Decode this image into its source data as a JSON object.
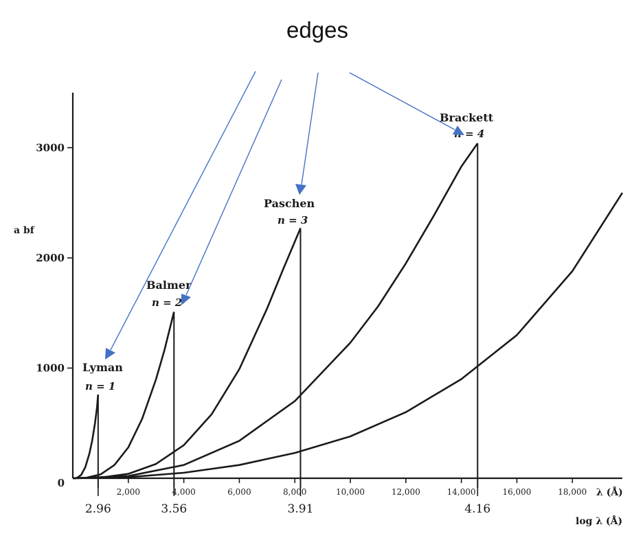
{
  "annotation": {
    "title": "edges",
    "arrow_color": "#4472c4"
  },
  "chart_data": {
    "type": "line",
    "title": "",
    "xlabel": "λ (Å)",
    "ylabel": "a bf",
    "log_axis_label": "log λ (Å)",
    "xlim": [
      0,
      19800
    ],
    "ylim": [
      0,
      3500
    ],
    "x_ticks": [
      2000,
      4000,
      6000,
      8000,
      10000,
      12000,
      14000,
      16000,
      18000
    ],
    "x_tick_labels": [
      "2,000",
      "4,000",
      "6,000",
      "8,000",
      "10,000",
      "12,000",
      "14,000",
      "16,000",
      "18,000"
    ],
    "y_ticks": [
      0,
      1000,
      2000,
      3000
    ],
    "y_tick_labels": [
      "0",
      "1000",
      "2000",
      "3000"
    ],
    "log_ticks": [
      {
        "x": 912,
        "label": "2.96"
      },
      {
        "x": 3646,
        "label": "3.56"
      },
      {
        "x": 8204,
        "label": "3.91"
      },
      {
        "x": 14585,
        "label": "4.16"
      }
    ],
    "series": [
      {
        "label": "Lyman",
        "sublabel": "n = 1",
        "n": 1,
        "edge_lambda": 912,
        "edge_value": 760,
        "x": [
          0,
          150,
          300,
          450,
          600,
          700,
          800,
          870,
          912
        ],
        "y": [
          0,
          4,
          30,
          100,
          225,
          345,
          500,
          640,
          760
        ]
      },
      {
        "label": "Balmer",
        "sublabel": "n = 2",
        "n": 2,
        "edge_lambda": 3646,
        "edge_value": 1510,
        "x": [
          0,
          500,
          1000,
          1500,
          2000,
          2500,
          3000,
          3300,
          3646
        ],
        "y": [
          0,
          5,
          35,
          120,
          280,
          540,
          900,
          1160,
          1510
        ]
      },
      {
        "label": "Paschen",
        "sublabel": "n = 3",
        "n": 3,
        "edge_lambda": 8204,
        "edge_value": 2270,
        "x": [
          0,
          1000,
          2000,
          3000,
          4000,
          5000,
          6000,
          7000,
          7600,
          8204
        ],
        "y": [
          0,
          6,
          40,
          130,
          300,
          580,
          990,
          1540,
          1910,
          2270
        ]
      },
      {
        "label": "Brackett",
        "sublabel": "n = 4",
        "n": 4,
        "edge_lambda": 14585,
        "edge_value": 3040,
        "x": [
          0,
          2000,
          4000,
          6000,
          8000,
          10000,
          11000,
          12000,
          13000,
          14000,
          14585
        ],
        "y": [
          0,
          20,
          120,
          340,
          700,
          1230,
          1560,
          1950,
          2380,
          2830,
          3040
        ]
      },
      {
        "label": "",
        "sublabel": "",
        "n": 5,
        "edge_lambda": null,
        "edge_value": null,
        "x": [
          0,
          2000,
          4000,
          6000,
          8000,
          10000,
          12000,
          14000,
          16000,
          18000,
          19800
        ],
        "y": [
          0,
          10,
          50,
          120,
          230,
          380,
          600,
          900,
          1300,
          1880,
          2590
        ]
      }
    ],
    "grid": false,
    "legend": "none"
  }
}
